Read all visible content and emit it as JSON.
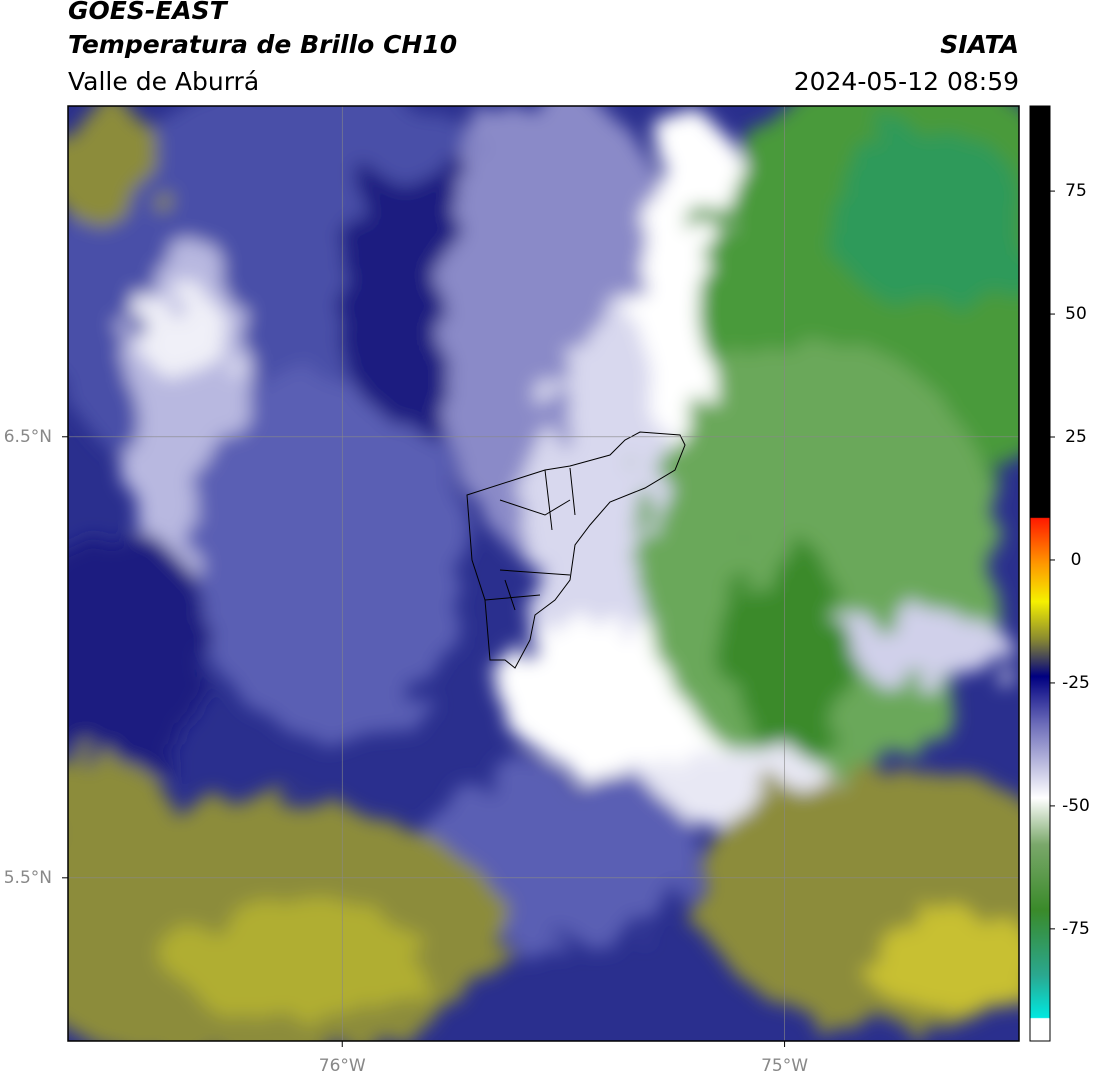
{
  "header": {
    "satellite": "GOES-EAST",
    "product": "Temperatura de Brillo CH10",
    "region": "Valle de Aburrá",
    "source": "SIATA",
    "timestamp": "2024-05-12 08:59"
  },
  "map": {
    "lonlim": [
      -76.62,
      -74.47
    ],
    "latlim": [
      5.13,
      7.25
    ],
    "lonticks": [
      {
        "value": -76,
        "label": "76°W"
      },
      {
        "value": -75,
        "label": "75°W"
      }
    ],
    "latticks": [
      {
        "value": 6.5,
        "label": "6.5°N"
      },
      {
        "value": 5.5,
        "label": "5.5°N"
      }
    ]
  },
  "colorbar": {
    "lim": [
      -97.8,
      92.3
    ],
    "ticks": [
      75,
      50,
      25,
      0,
      -25,
      -50,
      -75
    ]
  }
}
